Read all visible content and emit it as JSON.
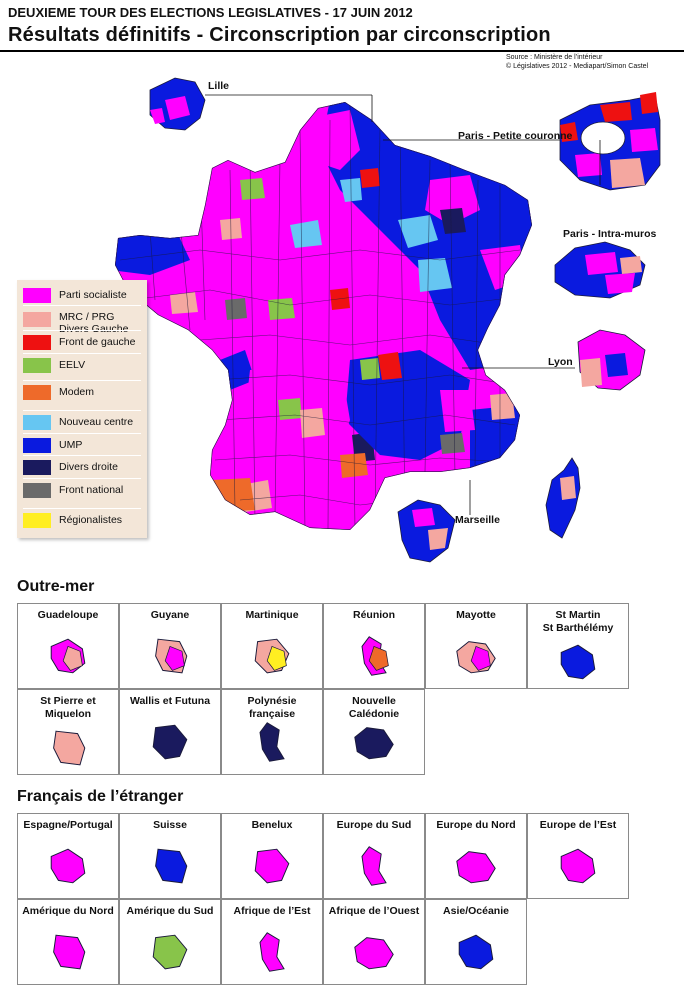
{
  "header": {
    "supertitle": "DEUXIEME TOUR DES ELECTIONS LEGISLATIVES - 17 JUIN 2012",
    "title": "Résultats définitifs - Circonscription par circonscription",
    "source_line1": "Source : Ministère de l’intérieur",
    "source_line2": "© Législatives 2012 - Mediapart/Simon Castel"
  },
  "colors": {
    "ps": "#ff00ff",
    "mrc": "#f4a7a0",
    "fdg": "#ee1111",
    "eelv": "#88c44a",
    "modem": "#ee6a2a",
    "nc": "#66c6f2",
    "ump": "#0a1adf",
    "dvd": "#1a1a5e",
    "fn": "#6a6a6a",
    "reg": "#ffee22"
  },
  "legend": [
    {
      "key": "ps",
      "label": "Parti socialiste"
    },
    {
      "key": "mrc",
      "label": "MRC / PRG\nDivers Gauche"
    },
    {
      "key": "fdg",
      "label": "Front de gauche"
    },
    {
      "key": "eelv",
      "label": "EELV"
    },
    {
      "key": "modem",
      "label": "Modem"
    },
    {
      "key": "nc",
      "label": "Nouveau centre"
    },
    {
      "key": "ump",
      "label": "UMP"
    },
    {
      "key": "dvd",
      "label": "Divers droite"
    },
    {
      "key": "fn",
      "label": "Front national"
    },
    {
      "key": "reg",
      "label": "Régionalistes"
    }
  ],
  "cities": {
    "lille": "Lille",
    "petite_couronne": "Paris - Petite couronne",
    "intra_muros": "Paris - Intra-muros",
    "lyon": "Lyon",
    "marseille": "Marseille"
  },
  "outremer": {
    "title": "Outre-mer",
    "cells": [
      {
        "label": "Guadeloupe",
        "colors": [
          "ps",
          "mrc"
        ]
      },
      {
        "label": "Guyane",
        "colors": [
          "mrc",
          "ps"
        ]
      },
      {
        "label": "Martinique",
        "colors": [
          "mrc",
          "reg"
        ]
      },
      {
        "label": "Réunion",
        "colors": [
          "ps",
          "modem"
        ]
      },
      {
        "label": "Mayotte",
        "colors": [
          "mrc",
          "ps"
        ]
      },
      {
        "label": "St Martin\nSt Barthélémy",
        "colors": [
          "ump"
        ]
      },
      {
        "label": "St Pierre et\nMiquelon",
        "colors": [
          "mrc"
        ]
      },
      {
        "label": "Wallis et Futuna",
        "colors": [
          "dvd"
        ]
      },
      {
        "label": "Polynésie française",
        "colors": [
          "dvd"
        ]
      },
      {
        "label": "Nouvelle Calédonie",
        "colors": [
          "dvd"
        ]
      }
    ]
  },
  "etranger": {
    "title": "Français de l’étranger",
    "cells": [
      {
        "label": "Espagne/Portugal",
        "colors": [
          "ps"
        ]
      },
      {
        "label": "Suisse",
        "colors": [
          "ump"
        ]
      },
      {
        "label": "Benelux",
        "colors": [
          "ps"
        ]
      },
      {
        "label": "Europe du Sud",
        "colors": [
          "ps"
        ]
      },
      {
        "label": "Europe du Nord",
        "colors": [
          "ps"
        ]
      },
      {
        "label": "Europe de l’Est",
        "colors": [
          "ps"
        ]
      },
      {
        "label": "Amérique du Nord",
        "colors": [
          "ps"
        ]
      },
      {
        "label": "Amérique du Sud",
        "colors": [
          "eelv"
        ]
      },
      {
        "label": "Afrique de l’Est",
        "colors": [
          "ps"
        ]
      },
      {
        "label": "Afrique de l’Ouest",
        "colors": [
          "ps"
        ]
      },
      {
        "label": "Asie/Océanie",
        "colors": [
          "ump"
        ]
      }
    ]
  }
}
